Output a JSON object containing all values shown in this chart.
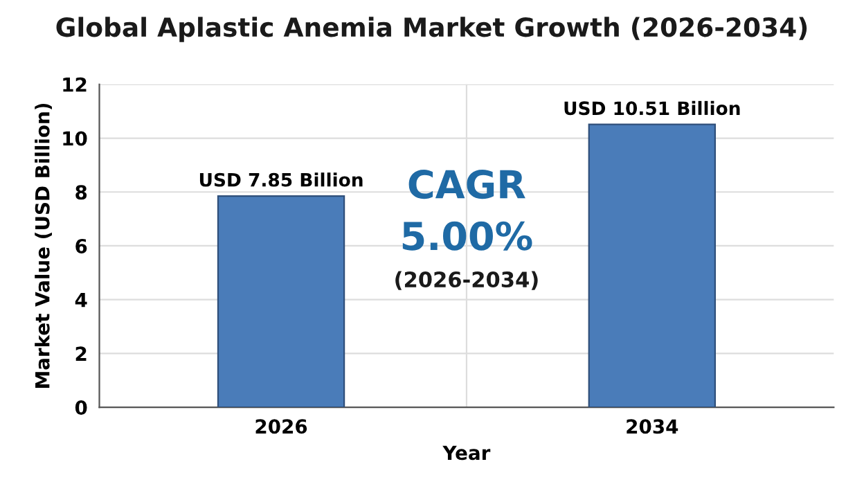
{
  "chart_data": {
    "type": "bar",
    "title": "Global Aplastic Anemia Market Growth (2026-2034)",
    "xlabel": "Year",
    "ylabel": "Market Value (USD Billion)",
    "categories": [
      "2026",
      "2034"
    ],
    "values": [
      7.85,
      10.51
    ],
    "value_labels": [
      "USD 7.85 Billion",
      "USD 10.51 Billion"
    ],
    "color": "#4a7cb9",
    "ylim": [
      0,
      12
    ],
    "yticks": [
      0,
      2,
      4,
      6,
      8,
      10,
      12
    ],
    "grid": true,
    "annotations": [
      "CAGR",
      "5.00%",
      "(2026-2034)"
    ]
  }
}
